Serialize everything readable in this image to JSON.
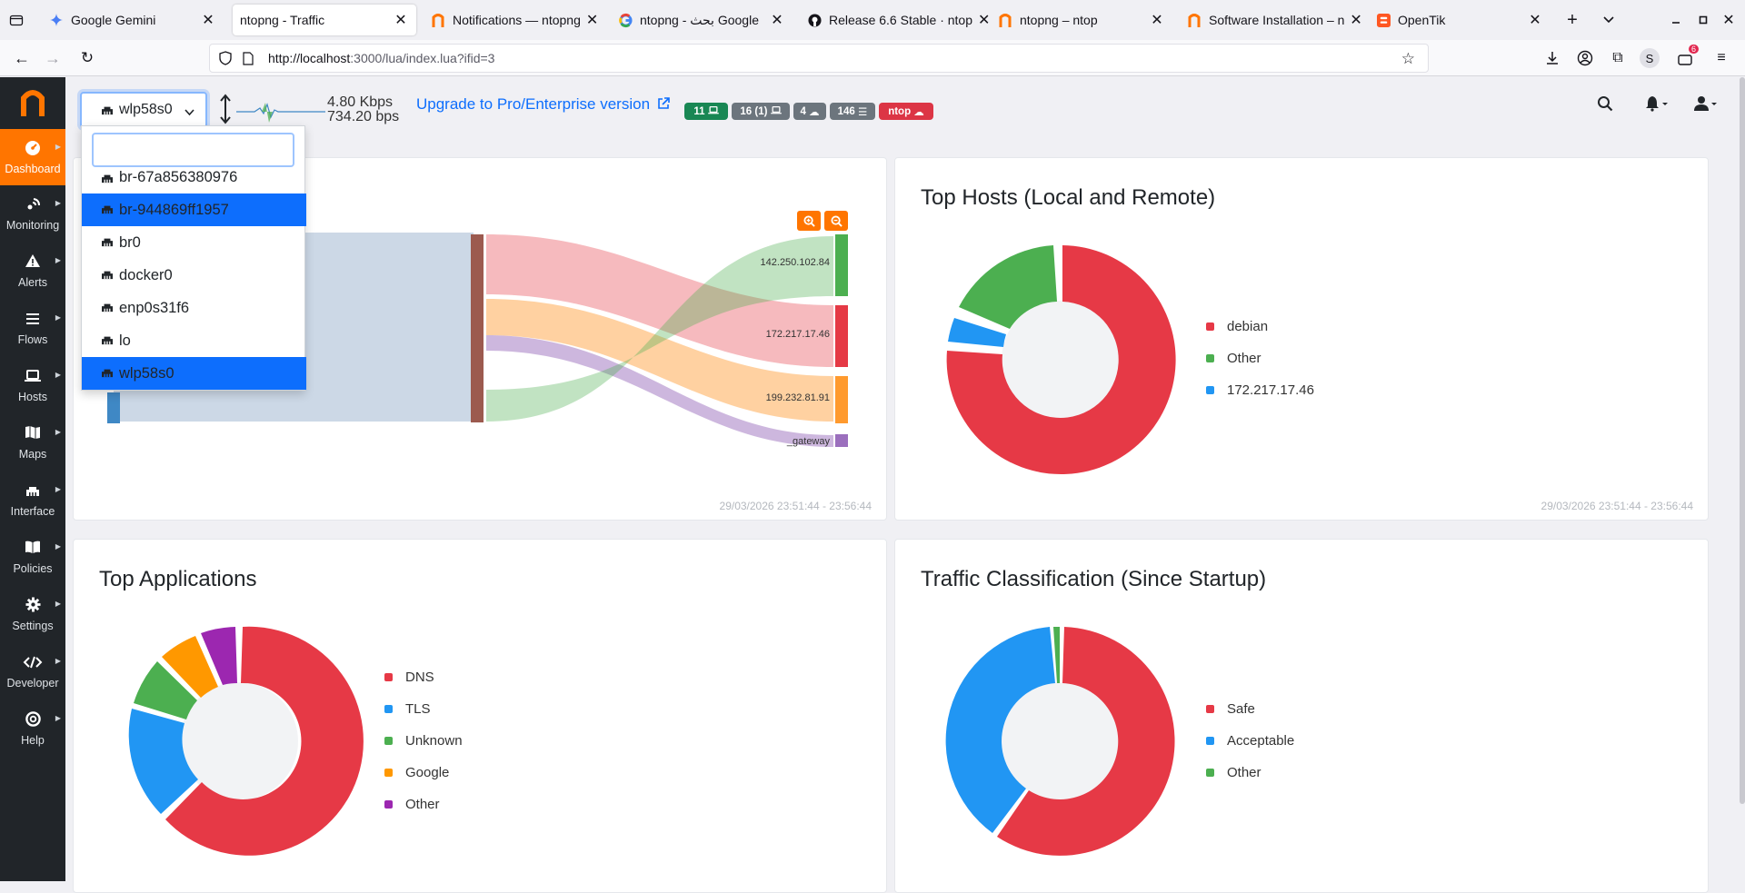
{
  "browser": {
    "tabs": [
      {
        "title": "Google Gemini",
        "icon": "gemini-icon",
        "active": false
      },
      {
        "title": "ntopng - Traffic",
        "icon": "none",
        "active": true
      },
      {
        "title": "Notifications — ntopng",
        "icon": "ntop-icon",
        "active": false
      },
      {
        "title": "ntopng - بحث Google",
        "icon": "google-icon",
        "active": false
      },
      {
        "title": "Release 6.6 Stable · ntop",
        "icon": "github-icon",
        "active": false
      },
      {
        "title": "ntopng – ntop",
        "icon": "ntop-icon",
        "active": false
      },
      {
        "title": "Software Installation – n",
        "icon": "ntop-icon",
        "active": false
      },
      {
        "title": "OpenTik",
        "icon": "blogger-icon",
        "active": false
      }
    ],
    "url_host": "http://localhost",
    "url_rest": ":3000/lua/index.lua?ifid=3",
    "extension_badge": "6",
    "profile_letter": "S"
  },
  "sidebar": {
    "items": [
      {
        "label": "Dashboard",
        "icon": "dashboard-gauge-icon",
        "active": true
      },
      {
        "label": "Monitoring",
        "icon": "monitoring-icon",
        "active": false
      },
      {
        "label": "Alerts",
        "icon": "alert-triangle-icon",
        "active": false
      },
      {
        "label": "Flows",
        "icon": "flows-lines-icon",
        "active": false
      },
      {
        "label": "Hosts",
        "icon": "laptop-icon",
        "active": false
      },
      {
        "label": "Maps",
        "icon": "map-icon",
        "active": false
      },
      {
        "label": "Interface",
        "icon": "ethernet-icon",
        "active": false
      },
      {
        "label": "Policies",
        "icon": "book-icon",
        "active": false
      },
      {
        "label": "Settings",
        "icon": "gear-icon",
        "active": false
      },
      {
        "label": "Developer",
        "icon": "code-icon",
        "active": false
      },
      {
        "label": "Help",
        "icon": "lifebuoy-icon",
        "active": false
      }
    ]
  },
  "topbar": {
    "interface": "wlp58s0",
    "throughput_up": "4.80 Kbps",
    "throughput_down": "734.20 bps",
    "upgrade_label": "Upgrade to Pro/Enterprise version",
    "badges": [
      {
        "label": "11",
        "icon": "laptop-icon",
        "color": "#198754"
      },
      {
        "label": "16 (1)",
        "icon": "laptop-icon",
        "color": "#6c757d"
      },
      {
        "label": "4",
        "icon": "cloud-icon",
        "color": "#6c757d"
      },
      {
        "label": "146",
        "icon": "list-icon",
        "color": "#6c757d"
      },
      {
        "label": "ntop",
        "icon": "cloud-icon",
        "color": "#dc3545"
      }
    ]
  },
  "dropdown": {
    "search_value": "",
    "options": [
      {
        "label": "br-67a856380976",
        "selected": false
      },
      {
        "label": "br-944869ff1957",
        "selected": true
      },
      {
        "label": "br0",
        "selected": false
      },
      {
        "label": "docker0",
        "selected": false
      },
      {
        "label": "enp0s31f6",
        "selected": false
      },
      {
        "label": "lo",
        "selected": false
      },
      {
        "label": "wlp58s0",
        "selected": true
      }
    ]
  },
  "cards": {
    "sankey": {
      "footer": "29/03/2026 23:51:44 - 23:56:44",
      "targets": [
        "142.250.102.84",
        "172.217.17.46",
        "199.232.81.91",
        "_gateway"
      ],
      "colors": {
        "g": "#4caf50",
        "r": "#e53945",
        "o": "#ff9a2e",
        "p": "#9b6fbd",
        "src": "#3f88c5",
        "mid": "#9c5a4f"
      }
    },
    "top_hosts": {
      "title": "Top Hosts (Local and Remote)",
      "footer": "29/03/2026 23:51:44 - 23:56:44",
      "legend": [
        {
          "label": "debian",
          "color": "#e63946"
        },
        {
          "label": "Other",
          "color": "#4caf50"
        },
        {
          "label": "172.217.17.46",
          "color": "#2196f3"
        }
      ]
    },
    "top_apps": {
      "title": "Top Applications",
      "legend": [
        {
          "label": "DNS",
          "color": "#e63946"
        },
        {
          "label": "TLS",
          "color": "#2196f3"
        },
        {
          "label": "Unknown",
          "color": "#4caf50"
        },
        {
          "label": "Google",
          "color": "#ff9800"
        },
        {
          "label": "Other",
          "color": "#9c27b0"
        }
      ]
    },
    "traffic_class": {
      "title": "Traffic Classification (Since Startup)",
      "legend": [
        {
          "label": "Safe",
          "color": "#e63946"
        },
        {
          "label": "Acceptable",
          "color": "#2196f3"
        },
        {
          "label": "Other",
          "color": "#4caf50"
        }
      ]
    }
  }
}
